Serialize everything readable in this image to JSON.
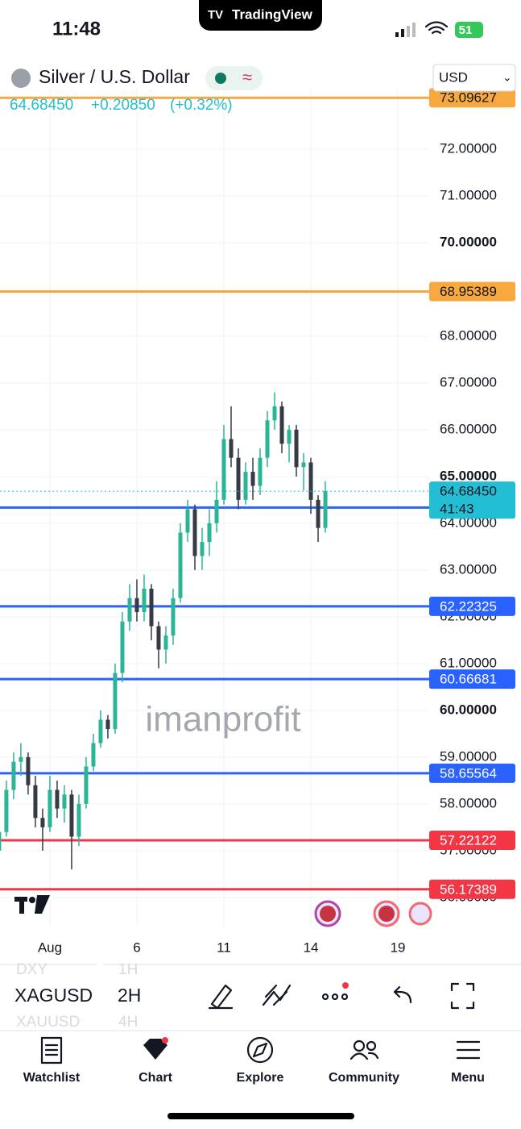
{
  "status_bar": {
    "time": "11:48",
    "app": "TradingView",
    "battery": "51"
  },
  "header": {
    "title": "Silver / U.S. Dollar",
    "currency": "USD",
    "change": "+0.20850",
    "change_percent": "(+0.32%)"
  },
  "chart_data": {
    "type": "candlestick",
    "x": [
      -1.75,
      -1.5,
      -1.25,
      -1,
      -0.75,
      -0.5,
      -0.25,
      0,
      0.25,
      0.5,
      0.75,
      1,
      1.25,
      1.5,
      1.75,
      2,
      2.25,
      2.5,
      2.75,
      3,
      3.25,
      3.5,
      3.75,
      4,
      4.25,
      4.5,
      4.75,
      5,
      5.25,
      5.5,
      5.75,
      6,
      6.25,
      6.5,
      6.75,
      7,
      7.25,
      7.5,
      7.75,
      8,
      8.25,
      8.5,
      8.75,
      9,
      9.25,
      9.5
    ],
    "open": [
      57.0,
      57.4,
      58.3,
      58.9,
      59.0,
      58.4,
      57.7,
      57.5,
      58.3,
      57.9,
      58.2,
      57.3,
      58.0,
      58.8,
      59.3,
      59.8,
      59.6,
      60.8,
      61.9,
      62.4,
      62.1,
      62.6,
      61.8,
      61.3,
      61.6,
      62.4,
      63.8,
      64.3,
      63.3,
      63.6,
      64.0,
      64.5,
      65.8,
      65.4,
      64.5,
      65.1,
      64.8,
      65.4,
      66.2,
      66.5,
      65.7,
      66.0,
      65.2,
      65.3,
      64.5,
      63.9
    ],
    "high": [
      57.6,
      58.5,
      59.1,
      59.3,
      59.1,
      58.6,
      57.9,
      58.6,
      58.5,
      58.4,
      58.3,
      58.2,
      59.0,
      59.5,
      60.0,
      59.9,
      61.0,
      62.1,
      62.7,
      62.8,
      62.9,
      62.7,
      61.9,
      61.8,
      62.6,
      64.0,
      64.5,
      64.4,
      63.9,
      64.3,
      64.9,
      66.1,
      66.5,
      65.6,
      65.3,
      65.4,
      65.6,
      66.4,
      66.8,
      66.6,
      66.1,
      66.1,
      65.5,
      65.4,
      64.6,
      64.9
    ],
    "low": [
      56.9,
      57.3,
      58.1,
      58.6,
      58.2,
      57.5,
      57.0,
      57.4,
      57.7,
      57.6,
      56.6,
      57.1,
      57.9,
      58.7,
      59.2,
      59.4,
      59.5,
      60.6,
      61.7,
      61.9,
      61.9,
      61.5,
      60.9,
      61.0,
      61.4,
      62.3,
      63.6,
      63.0,
      63.0,
      63.3,
      63.8,
      64.4,
      65.2,
      64.3,
      64.4,
      64.5,
      64.6,
      65.2,
      66.0,
      65.5,
      65.3,
      65.0,
      64.7,
      64.2,
      63.6,
      63.8
    ],
    "close": [
      57.4,
      58.3,
      58.9,
      59.0,
      58.4,
      57.7,
      57.5,
      58.3,
      57.9,
      58.2,
      57.3,
      58.0,
      58.8,
      59.3,
      59.8,
      59.6,
      60.8,
      61.9,
      62.4,
      62.1,
      62.6,
      61.8,
      61.3,
      61.6,
      62.4,
      63.8,
      64.3,
      63.3,
      63.6,
      64.0,
      64.5,
      65.8,
      65.4,
      64.5,
      65.1,
      64.8,
      65.4,
      66.2,
      66.5,
      65.7,
      66.0,
      65.2,
      65.3,
      64.5,
      63.9,
      64.6845
    ],
    "up_color": "#2bb596",
    "down_color": "#363a45",
    "xlim": [
      -1.72,
      12.97
    ],
    "xticks": [
      {
        "value": 0,
        "label": "Aug"
      },
      {
        "value": 3,
        "label": "6"
      },
      {
        "value": 6,
        "label": "11"
      },
      {
        "value": 9,
        "label": "14"
      },
      {
        "value": 12,
        "label": "19"
      }
    ],
    "ylim": [
      55.36,
      73.29
    ],
    "yticks": [
      {
        "value": 56,
        "label": "56.00000"
      },
      {
        "value": 57,
        "label": "57.00000"
      },
      {
        "value": 58,
        "label": "58.00000"
      },
      {
        "value": 59,
        "label": "59.00000"
      },
      {
        "value": 60,
        "label": "60.00000"
      },
      {
        "value": 61,
        "label": "61.00000"
      },
      {
        "value": 62,
        "label": "62.00000"
      },
      {
        "value": 63,
        "label": "63.00000"
      },
      {
        "value": 64,
        "label": "64.00000"
      },
      {
        "value": 65,
        "label": "65.00000"
      },
      {
        "value": 66,
        "label": "66.00000"
      },
      {
        "value": 67,
        "label": "67.00000"
      },
      {
        "value": 68,
        "label": "68.00000"
      },
      {
        "value": 69,
        "label": "69.00000"
      },
      {
        "value": 70,
        "label": "70.00000"
      },
      {
        "value": 71,
        "label": "71.00000"
      },
      {
        "value": 72,
        "label": "72.00000"
      }
    ],
    "grid": true,
    "levels": [
      {
        "value": 73.09627,
        "color": "#f7a940"
      },
      {
        "value": 68.95389,
        "color": "#f7a940"
      },
      {
        "value": 64.33531,
        "color": "#2962ff"
      },
      {
        "value": 62.22325,
        "color": "#2962ff"
      },
      {
        "value": 60.66681,
        "color": "#2962ff"
      },
      {
        "value": 58.65564,
        "color": "#2962ff"
      },
      {
        "value": 57.22122,
        "color": "#f23645"
      },
      {
        "value": 56.17389,
        "color": "#f23645"
      }
    ],
    "last_price": {
      "value": 64.6845,
      "label": "64.68450",
      "countdown": "41:43",
      "color": "#22bfd4"
    },
    "watermark": "imanprofit"
  },
  "toolbar": {
    "symbol": "XAGUSD",
    "symbol_above": "DXY",
    "symbol_below": "XAUUSD",
    "interval": "2H",
    "interval_above": "1H",
    "interval_below": "4H"
  },
  "tabs": [
    "Watchlist",
    "Chart",
    "Explore",
    "Community",
    "Menu"
  ]
}
